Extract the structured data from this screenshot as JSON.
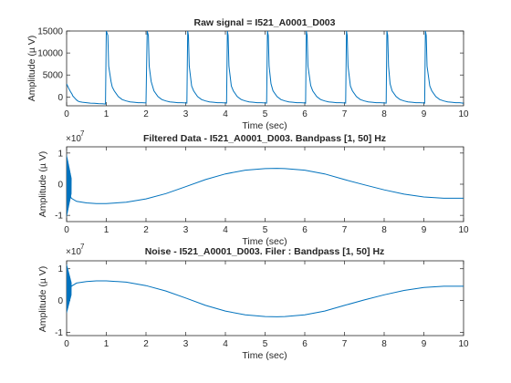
{
  "chart_data": [
    {
      "type": "line",
      "title": "Raw signal = I521_A0001_D003",
      "xlabel": "Time (sec)",
      "ylabel": "Amplitude (µ V)",
      "xlim": [
        0,
        10
      ],
      "ylim": [
        -2000,
        15000
      ],
      "xticks": [
        0,
        1,
        2,
        3,
        4,
        5,
        6,
        7,
        8,
        9,
        10
      ],
      "yticks": [
        0,
        5000,
        10000,
        15000
      ],
      "exponent_label": "",
      "grid": false,
      "color": "#0072BD",
      "series": [
        {
          "x": [
            0.0,
            0.05,
            0.1,
            0.14,
            0.15,
            0.2,
            0.25,
            0.3,
            0.35,
            0.4,
            0.5,
            0.6,
            0.7,
            0.8,
            0.9,
            0.98,
            1.0,
            1.04,
            1.06,
            1.12,
            1.15,
            1.2,
            1.3,
            1.4,
            1.5,
            1.6,
            1.7,
            1.8,
            1.9,
            2.0,
            2.03,
            2.06,
            2.08,
            2.13,
            2.2,
            2.3,
            2.4,
            2.5,
            2.6,
            2.7,
            2.8,
            2.9,
            3.0,
            3.03,
            3.05,
            3.07,
            3.09,
            3.15,
            3.2,
            3.3,
            3.4,
            3.5,
            3.6,
            3.7,
            3.8,
            3.9,
            4.0,
            4.03,
            4.05,
            4.07,
            4.09,
            4.15,
            4.2,
            4.3,
            4.4,
            4.5,
            4.6,
            4.7,
            4.8,
            4.9,
            5.0,
            5.04,
            5.06,
            5.08,
            5.1,
            5.15,
            5.2,
            5.3,
            5.4,
            5.5,
            5.6,
            5.7,
            5.8,
            5.9,
            6.0,
            6.02,
            6.04,
            6.06,
            6.08,
            6.15,
            6.2,
            6.3,
            6.4,
            6.5,
            6.6,
            6.7,
            6.8,
            6.9,
            7.0,
            7.03,
            7.05,
            7.07,
            7.09,
            7.15,
            7.2,
            7.3,
            7.4,
            7.5,
            7.6,
            7.7,
            7.8,
            7.9,
            8.0,
            8.05,
            8.07,
            8.09,
            8.11,
            8.15,
            8.2,
            8.3,
            8.4,
            8.5,
            8.6,
            8.7,
            8.8,
            8.9,
            9.0,
            9.02,
            9.04,
            9.06,
            9.08,
            9.15,
            9.2,
            9.3,
            9.4,
            9.5,
            9.6,
            9.7,
            9.8,
            9.9,
            9.95,
            9.98,
            10.0
          ],
          "y": [
            3000,
            2000,
            1200,
            600,
            300,
            -200,
            -700,
            -1000,
            -1100,
            -1200,
            -1300,
            -1400,
            -1450,
            -1500,
            -1550,
            -1600,
            15000,
            14000,
            7000,
            3500,
            2300,
            1400,
            100,
            -600,
            -900,
            -1100,
            -1200,
            -1300,
            -1300,
            -1350,
            15000,
            14000,
            7000,
            3500,
            1400,
            100,
            -600,
            -900,
            -1100,
            -1200,
            -1300,
            -1300,
            -1350,
            -1400,
            15000,
            14000,
            7000,
            2500,
            1400,
            100,
            -600,
            -900,
            -1100,
            -1200,
            -1300,
            -1300,
            -1350,
            -1400,
            15000,
            14000,
            7000,
            2500,
            1400,
            100,
            -600,
            -900,
            -1100,
            -1200,
            -1300,
            -1300,
            -1350,
            -1400,
            15000,
            14000,
            7000,
            3000,
            1400,
            100,
            -600,
            -900,
            -1100,
            -1200,
            -1300,
            -1300,
            -1350,
            -1400,
            15000,
            14000,
            7000,
            2600,
            1400,
            100,
            -600,
            -900,
            -1100,
            -1200,
            -1300,
            -1300,
            -1350,
            -1400,
            15000,
            14000,
            7000,
            2500,
            1400,
            100,
            -600,
            -900,
            -1100,
            -1200,
            -1300,
            -1300,
            -1350,
            -1400,
            15000,
            14000,
            7000,
            3000,
            1400,
            100,
            -600,
            -900,
            -1100,
            -1200,
            -1300,
            -1300,
            -1350,
            -1400,
            15000,
            14000,
            7000,
            2500,
            1400,
            100,
            -600,
            -900,
            -1100,
            -1200,
            -1300,
            -1300,
            -1350,
            -1400,
            -1450
          ]
        }
      ]
    },
    {
      "type": "line",
      "title": "Filtered Data - I521_A0001_D003. Bandpass [1, 50] Hz",
      "xlabel": "Time (sec)",
      "ylabel": "Amplitude (µ V)",
      "xlim": [
        0,
        10
      ],
      "ylim": [
        -1.2,
        1.2
      ],
      "xticks": [
        0,
        1,
        2,
        3,
        4,
        5,
        6,
        7,
        8,
        9,
        10
      ],
      "yticks": [
        -1,
        0,
        1
      ],
      "exponent_label": "×10",
      "exponent_power": "7",
      "grid": false,
      "color": "#0072BD",
      "noise_burst": {
        "end": 0.12,
        "upper": 0.95,
        "lower": -1.05
      },
      "series": [
        {
          "x": [
            0.0,
            0.12,
            0.25,
            0.5,
            0.75,
            1.0,
            1.5,
            2.0,
            2.5,
            3.0,
            3.5,
            4.0,
            4.5,
            5.0,
            5.3,
            5.5,
            6.0,
            6.5,
            7.0,
            7.5,
            8.0,
            8.5,
            9.0,
            9.5,
            10.0
          ],
          "y": [
            -0.1,
            -0.45,
            -0.55,
            -0.6,
            -0.62,
            -0.62,
            -0.58,
            -0.47,
            -0.3,
            -0.08,
            0.15,
            0.33,
            0.45,
            0.5,
            0.51,
            0.5,
            0.45,
            0.33,
            0.15,
            -0.02,
            -0.18,
            -0.32,
            -0.41,
            -0.45,
            -0.45
          ]
        }
      ]
    },
    {
      "type": "line",
      "title": "Noise - I521_A0001_D003. Filer : Bandpass [1, 50] Hz",
      "xlabel": "Time (sec)",
      "ylabel": "Amplitude (µ V)",
      "xlim": [
        0,
        10
      ],
      "ylim": [
        -1.1,
        1.25
      ],
      "xticks": [
        0,
        1,
        2,
        3,
        4,
        5,
        6,
        7,
        8,
        9,
        10
      ],
      "yticks": [
        -1,
        0,
        1
      ],
      "exponent_label": "×10",
      "exponent_power": "7",
      "grid": false,
      "color": "#0072BD",
      "noise_burst": {
        "end": 0.12,
        "upper": 1.15,
        "lower": -0.4
      },
      "series": [
        {
          "x": [
            0.0,
            0.12,
            0.25,
            0.5,
            0.75,
            1.0,
            1.5,
            2.0,
            2.5,
            3.0,
            3.5,
            4.0,
            4.5,
            5.0,
            5.3,
            5.5,
            6.0,
            6.5,
            7.0,
            7.5,
            8.0,
            8.5,
            9.0,
            9.5,
            10.0
          ],
          "y": [
            0.1,
            0.45,
            0.55,
            0.6,
            0.62,
            0.62,
            0.58,
            0.47,
            0.3,
            0.08,
            -0.15,
            -0.33,
            -0.45,
            -0.5,
            -0.51,
            -0.5,
            -0.45,
            -0.33,
            -0.15,
            0.02,
            0.18,
            0.32,
            0.41,
            0.45,
            0.45
          ]
        }
      ]
    }
  ]
}
